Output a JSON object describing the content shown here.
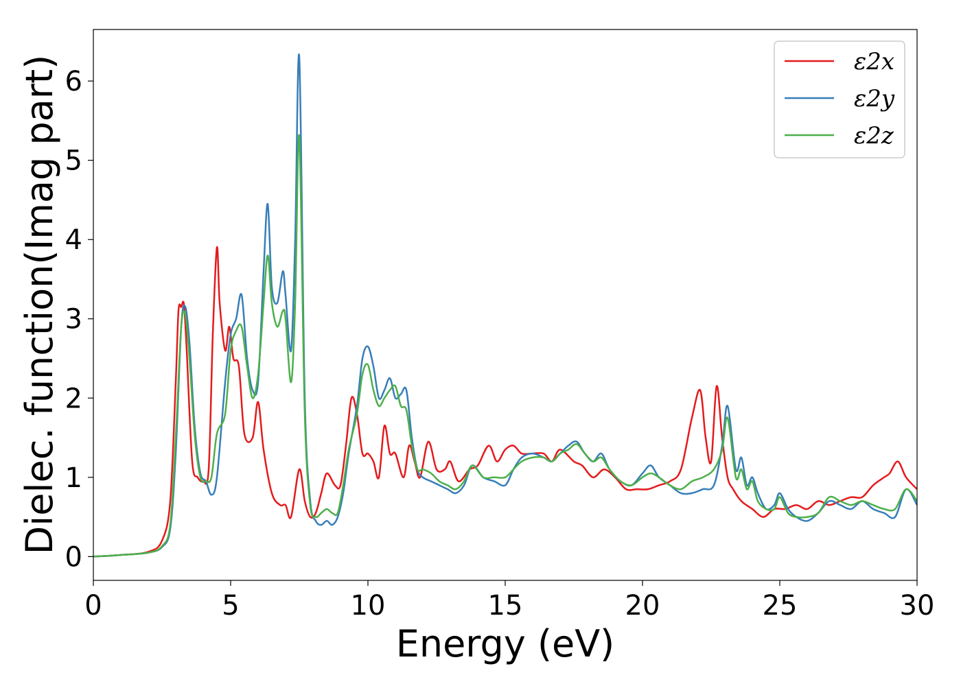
{
  "chart_data": {
    "type": "line",
    "title": "",
    "xlabel": "Energy (eV)",
    "ylabel": "Dielec. function(Imag part)",
    "xlim": [
      0,
      30
    ],
    "ylim": [
      -0.3,
      6.65
    ],
    "x_ticks": [
      "0",
      "5",
      "10",
      "15",
      "20",
      "25",
      "30"
    ],
    "y_ticks": [
      "0",
      "1",
      "2",
      "3",
      "4",
      "5",
      "6"
    ],
    "grid": false,
    "legend_position": "top-right",
    "series": [
      {
        "name": "ε2x",
        "color": "#e41a1c",
        "x": [
          0,
          1,
          2,
          2.5,
          2.8,
          3.0,
          3.1,
          3.2,
          3.3,
          3.4,
          3.6,
          3.8,
          4.0,
          4.2,
          4.35,
          4.5,
          4.6,
          4.8,
          4.95,
          5.1,
          5.3,
          5.5,
          5.8,
          6.0,
          6.2,
          6.5,
          6.8,
          7.0,
          7.2,
          7.5,
          7.7,
          7.9,
          8.1,
          8.3,
          8.5,
          8.8,
          9.0,
          9.2,
          9.4,
          9.6,
          9.8,
          10.0,
          10.2,
          10.4,
          10.6,
          10.8,
          11.0,
          11.3,
          11.5,
          11.7,
          11.9,
          12.2,
          12.5,
          12.8,
          13.0,
          13.3,
          13.7,
          14.0,
          14.4,
          14.7,
          15.0,
          15.3,
          15.6,
          16.0,
          16.4,
          16.7,
          17.0,
          17.5,
          17.8,
          18.2,
          18.6,
          19.0,
          19.4,
          19.8,
          20.2,
          20.6,
          21.0,
          21.4,
          21.8,
          22.1,
          22.3,
          22.5,
          22.7,
          22.9,
          23.1,
          23.3,
          23.6,
          24.0,
          24.4,
          24.8,
          25.2,
          25.6,
          26.0,
          26.4,
          26.8,
          27.2,
          27.6,
          28.0,
          28.4,
          28.8,
          29.0,
          29.3,
          29.6,
          30.0
        ],
        "y": [
          0,
          0.02,
          0.06,
          0.2,
          0.7,
          2.2,
          3.1,
          3.15,
          3.18,
          2.6,
          1.2,
          1.0,
          0.95,
          1.1,
          2.8,
          3.9,
          3.2,
          2.6,
          2.9,
          2.5,
          2.4,
          1.55,
          1.5,
          1.95,
          1.35,
          0.8,
          0.65,
          0.65,
          0.5,
          1.1,
          0.7,
          0.5,
          0.55,
          0.8,
          1.05,
          0.9,
          0.9,
          1.4,
          2.0,
          1.8,
          1.3,
          1.3,
          1.2,
          1.0,
          1.65,
          1.3,
          1.3,
          1.0,
          1.4,
          1.2,
          1.0,
          1.45,
          1.1,
          1.1,
          1.2,
          0.95,
          1.1,
          1.15,
          1.4,
          1.2,
          1.35,
          1.4,
          1.3,
          1.3,
          1.3,
          1.2,
          1.35,
          1.2,
          1.15,
          1.0,
          1.1,
          1.0,
          0.85,
          0.85,
          0.85,
          0.9,
          0.95,
          1.1,
          1.75,
          2.1,
          1.5,
          1.2,
          2.15,
          1.5,
          1.0,
          0.85,
          0.7,
          0.6,
          0.5,
          0.6,
          0.6,
          0.65,
          0.6,
          0.7,
          0.65,
          0.7,
          0.75,
          0.75,
          0.9,
          1.0,
          1.05,
          1.2,
          1.0,
          0.85
        ]
      },
      {
        "name": "ε2y",
        "color": "#377eb8",
        "x": [
          0,
          1,
          2,
          2.5,
          2.8,
          3.0,
          3.2,
          3.35,
          3.5,
          3.7,
          3.9,
          4.1,
          4.3,
          4.5,
          4.8,
          5.0,
          5.2,
          5.4,
          5.6,
          5.8,
          6.0,
          6.2,
          6.35,
          6.5,
          6.7,
          6.9,
          7.0,
          7.2,
          7.35,
          7.5,
          7.7,
          7.9,
          8.1,
          8.3,
          8.5,
          8.7,
          8.9,
          9.1,
          9.3,
          9.6,
          9.8,
          10.0,
          10.2,
          10.4,
          10.6,
          10.8,
          11.0,
          11.2,
          11.4,
          11.6,
          11.8,
          12.0,
          12.3,
          12.6,
          12.9,
          13.2,
          13.5,
          13.8,
          14.2,
          14.6,
          15.0,
          15.3,
          15.6,
          16.0,
          16.4,
          16.7,
          17.0,
          17.3,
          17.6,
          17.9,
          18.2,
          18.5,
          18.8,
          19.2,
          19.6,
          20.0,
          20.3,
          20.6,
          21.0,
          21.4,
          21.8,
          22.2,
          22.6,
          22.9,
          23.1,
          23.4,
          23.6,
          23.8,
          24.0,
          24.2,
          24.5,
          24.8,
          25.0,
          25.3,
          25.6,
          26.0,
          26.4,
          26.8,
          27.2,
          27.6,
          28.0,
          28.4,
          28.8,
          29.2,
          29.6,
          30.0
        ],
        "y": [
          0,
          0.02,
          0.05,
          0.12,
          0.35,
          1.3,
          2.9,
          3.15,
          2.7,
          1.6,
          1.05,
          0.95,
          0.78,
          1.0,
          2.2,
          2.8,
          3.0,
          3.3,
          2.5,
          2.1,
          2.2,
          3.6,
          4.45,
          3.4,
          3.2,
          3.6,
          3.3,
          2.6,
          4.0,
          6.3,
          2.0,
          0.7,
          0.45,
          0.4,
          0.45,
          0.4,
          0.5,
          0.8,
          1.3,
          1.9,
          2.5,
          2.65,
          2.4,
          2.0,
          2.1,
          2.25,
          2.0,
          2.05,
          2.1,
          1.5,
          1.1,
          1.0,
          0.95,
          0.9,
          0.85,
          0.8,
          0.9,
          1.15,
          1.0,
          0.95,
          0.9,
          1.1,
          1.25,
          1.3,
          1.25,
          1.2,
          1.3,
          1.4,
          1.45,
          1.3,
          1.2,
          1.3,
          1.1,
          0.95,
          0.9,
          1.05,
          1.15,
          1.0,
          0.9,
          0.8,
          0.8,
          0.85,
          0.9,
          1.4,
          1.9,
          1.1,
          1.25,
          0.9,
          1.0,
          0.8,
          0.6,
          0.65,
          0.8,
          0.6,
          0.5,
          0.45,
          0.55,
          0.7,
          0.65,
          0.6,
          0.7,
          0.6,
          0.55,
          0.5,
          0.85,
          0.65
        ]
      },
      {
        "name": "ε2z",
        "color": "#4daf4a",
        "x": [
          0,
          1,
          2,
          2.5,
          2.8,
          3.0,
          3.2,
          3.35,
          3.5,
          3.7,
          3.9,
          4.1,
          4.3,
          4.5,
          4.8,
          5.0,
          5.2,
          5.4,
          5.6,
          5.8,
          6.0,
          6.2,
          6.35,
          6.5,
          6.7,
          6.9,
          7.0,
          7.2,
          7.35,
          7.5,
          7.7,
          7.9,
          8.1,
          8.3,
          8.5,
          8.7,
          8.9,
          9.1,
          9.3,
          9.6,
          9.8,
          10.0,
          10.2,
          10.4,
          10.6,
          10.8,
          11.0,
          11.2,
          11.4,
          11.6,
          11.8,
          12.0,
          12.3,
          12.6,
          12.9,
          13.2,
          13.5,
          13.8,
          14.2,
          14.6,
          15.0,
          15.3,
          15.6,
          16.0,
          16.4,
          16.7,
          17.0,
          17.3,
          17.6,
          17.9,
          18.2,
          18.5,
          18.8,
          19.2,
          19.6,
          20.0,
          20.3,
          20.6,
          21.0,
          21.4,
          21.8,
          22.2,
          22.6,
          22.9,
          23.1,
          23.4,
          23.6,
          23.8,
          24.0,
          24.2,
          24.5,
          24.8,
          25.0,
          25.3,
          25.6,
          26.0,
          26.4,
          26.8,
          27.2,
          27.6,
          28.0,
          28.4,
          28.8,
          29.2,
          29.6,
          30.0
        ],
        "y": [
          0,
          0.02,
          0.05,
          0.13,
          0.4,
          1.5,
          2.9,
          3.05,
          2.5,
          1.5,
          1.0,
          0.95,
          1.0,
          1.55,
          1.8,
          2.6,
          2.85,
          2.9,
          2.4,
          2.0,
          2.3,
          3.2,
          3.8,
          3.2,
          2.9,
          3.1,
          3.0,
          2.2,
          3.2,
          5.3,
          1.8,
          0.65,
          0.5,
          0.55,
          0.6,
          0.55,
          0.55,
          0.9,
          1.35,
          1.8,
          2.3,
          2.42,
          2.1,
          1.9,
          2.0,
          2.1,
          2.15,
          1.9,
          1.85,
          1.4,
          1.1,
          1.1,
          1.05,
          0.95,
          0.9,
          0.85,
          0.95,
          1.15,
          1.0,
          1.0,
          1.0,
          1.1,
          1.2,
          1.25,
          1.25,
          1.2,
          1.3,
          1.35,
          1.42,
          1.3,
          1.2,
          1.25,
          1.1,
          0.95,
          0.9,
          1.0,
          1.05,
          1.0,
          0.9,
          0.85,
          0.95,
          1.0,
          1.1,
          1.35,
          1.75,
          1.0,
          1.1,
          0.85,
          0.95,
          0.7,
          0.6,
          0.6,
          0.75,
          0.55,
          0.5,
          0.5,
          0.55,
          0.75,
          0.7,
          0.65,
          0.7,
          0.65,
          0.6,
          0.6,
          0.85,
          0.7
        ]
      }
    ]
  }
}
